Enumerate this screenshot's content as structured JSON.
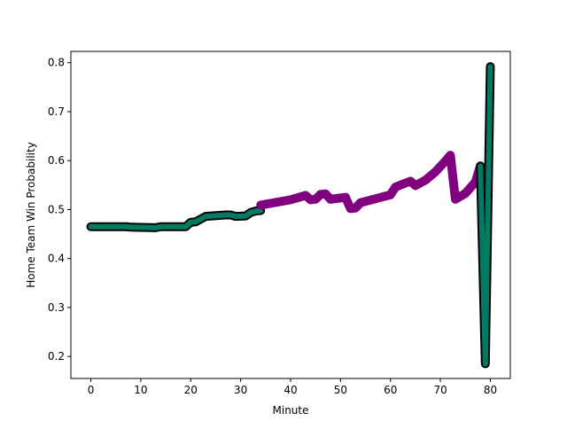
{
  "chart_data": {
    "type": "line",
    "title": "",
    "xlabel": "Minute",
    "ylabel": "Home Team Win Probability",
    "xlim": [
      -4,
      84
    ],
    "ylim": [
      0.155,
      0.823
    ],
    "xticks": [
      0,
      10,
      20,
      30,
      40,
      50,
      60,
      70,
      80
    ],
    "yticks": [
      0.2,
      0.3,
      0.4,
      0.5,
      0.6,
      0.7,
      0.8
    ],
    "xtick_labels": [
      "0",
      "10",
      "20",
      "30",
      "40",
      "50",
      "60",
      "70",
      "80"
    ],
    "ytick_labels": [
      "0.2",
      "0.3",
      "0.4",
      "0.5",
      "0.6",
      "0.7",
      "0.8"
    ],
    "grid": false,
    "series": [
      {
        "name": "teal-segment-1",
        "color": "#007a63",
        "outline": "#000000",
        "points": [
          [
            0,
            0.465
          ],
          [
            7,
            0.465
          ],
          [
            8,
            0.464
          ],
          [
            13,
            0.463
          ],
          [
            14,
            0.465
          ],
          [
            19,
            0.465
          ],
          [
            20,
            0.474
          ],
          [
            21,
            0.475
          ],
          [
            23,
            0.486
          ],
          [
            27,
            0.489
          ],
          [
            28,
            0.489
          ],
          [
            29,
            0.486
          ],
          [
            31,
            0.487
          ],
          [
            32,
            0.494
          ],
          [
            33,
            0.497
          ],
          [
            34,
            0.498
          ]
        ]
      },
      {
        "name": "purple-segment",
        "color": "#800080",
        "outline": "#800080",
        "points": [
          [
            34,
            0.509
          ],
          [
            40,
            0.52
          ],
          [
            43,
            0.529
          ],
          [
            44,
            0.52
          ],
          [
            45,
            0.521
          ],
          [
            46,
            0.531
          ],
          [
            47,
            0.532
          ],
          [
            48,
            0.521
          ],
          [
            51,
            0.525
          ],
          [
            52,
            0.502
          ],
          [
            53,
            0.503
          ],
          [
            54,
            0.514
          ],
          [
            60,
            0.53
          ],
          [
            61,
            0.546
          ],
          [
            64,
            0.558
          ],
          [
            65,
            0.549
          ],
          [
            67,
            0.56
          ],
          [
            69,
            0.577
          ],
          [
            71,
            0.599
          ],
          [
            72,
            0.611
          ],
          [
            73,
            0.521
          ],
          [
            75,
            0.533
          ],
          [
            77,
            0.556
          ],
          [
            78,
            0.589
          ]
        ]
      },
      {
        "name": "teal-segment-2",
        "color": "#007a63",
        "outline": "#000000",
        "points": [
          [
            78,
            0.589
          ],
          [
            79,
            0.185
          ],
          [
            80,
            0.792
          ]
        ]
      }
    ]
  }
}
